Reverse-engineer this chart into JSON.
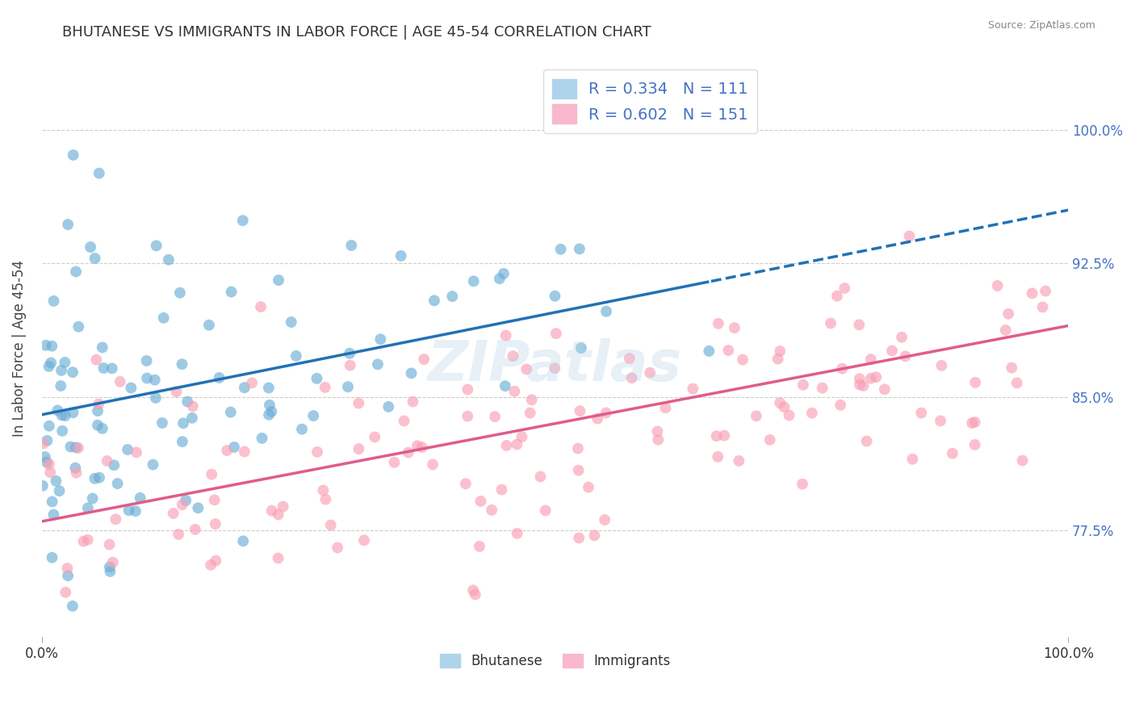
{
  "title": "BHUTANESE VS IMMIGRANTS IN LABOR FORCE | AGE 45-54 CORRELATION CHART",
  "source": "Source: ZipAtlas.com",
  "ylabel": "In Labor Force | Age 45-54",
  "yticks": [
    77.5,
    85.0,
    92.5,
    100.0
  ],
  "ytick_labels": [
    "77.5%",
    "85.0%",
    "92.5%",
    "100.0%"
  ],
  "blue_R": 0.334,
  "blue_N": 111,
  "pink_R": 0.602,
  "pink_N": 151,
  "blue_color": "#6baed6",
  "pink_color": "#fa9fb5",
  "blue_line_color": "#2171b5",
  "pink_line_color": "#e05c8a",
  "blue_seed": 42,
  "pink_seed": 7,
  "xmin": 0.0,
  "xmax": 100.0,
  "ymin": 71.5,
  "ymax": 104.0,
  "blue_scatter_alpha": 0.65,
  "pink_scatter_alpha": 0.65,
  "scatter_size": 100,
  "blue_line_intercept": 84.0,
  "blue_line_slope": 0.115,
  "pink_line_intercept": 78.0,
  "pink_line_slope": 0.11,
  "blue_solid_xmax": 65.0,
  "watermark_text": "ZIPatlas",
  "watermark_color": "#b8d4e8",
  "watermark_alpha": 0.35,
  "watermark_fontsize": 50
}
